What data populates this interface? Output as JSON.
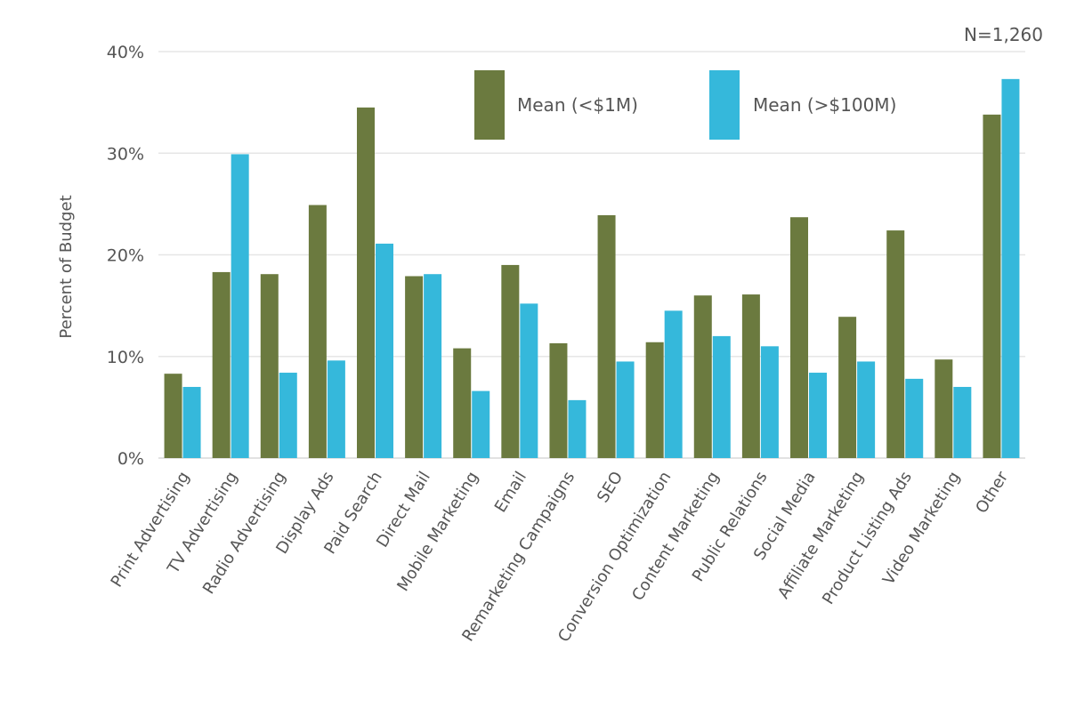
{
  "chart_data": {
    "type": "bar",
    "note": "N=1,260",
    "ylabel": "Percent of Budget",
    "xlabel": "",
    "ylim": [
      0,
      40
    ],
    "y_ticks": [
      "0%",
      "10%",
      "20%",
      "30%",
      "40%"
    ],
    "grid": true,
    "legend_position": "top",
    "categories": [
      "Print Advertising",
      "TV Advertising",
      "Radio Advertising",
      "Display Ads",
      "Paid Search",
      "Direct Mail",
      "Mobile Marketing",
      "Email",
      "Remarketing Campaigns",
      "SEO",
      "Conversion Optimization",
      "Content Marketing",
      "Public Relations",
      "Social Media",
      "Affiliate Marketing",
      "Product Listing Ads",
      "Video Marketing",
      "Other"
    ],
    "series": [
      {
        "name": "Mean (<$1M)",
        "color": "#6b7a3f",
        "values": [
          8.3,
          18.3,
          18.1,
          24.9,
          34.5,
          17.9,
          10.8,
          19.0,
          11.3,
          23.9,
          11.4,
          16.0,
          16.1,
          23.7,
          13.9,
          22.4,
          9.7,
          33.8
        ]
      },
      {
        "name": "Mean (>$100M)",
        "color": "#35b8db",
        "values": [
          7.0,
          29.9,
          8.4,
          9.6,
          21.1,
          18.1,
          6.6,
          15.2,
          5.7,
          9.5,
          14.5,
          12.0,
          11.0,
          8.4,
          9.5,
          7.8,
          7.0,
          37.3
        ]
      }
    ]
  }
}
